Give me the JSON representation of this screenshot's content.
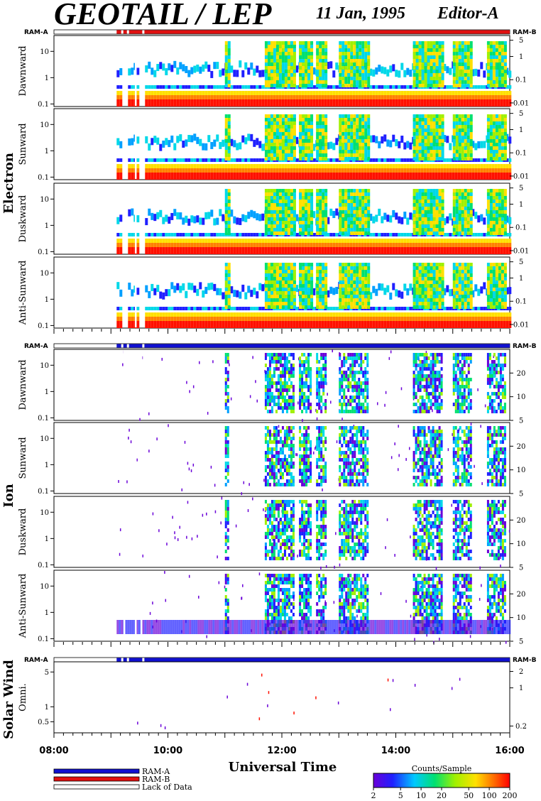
{
  "header": {
    "title": "GEOTAIL / LEP",
    "date": "11 Jan, 1995",
    "editor": "Editor-A"
  },
  "ram": {
    "left": "RAM-A",
    "right": "RAM-B"
  },
  "colors": {
    "ram_a": "#1010d0",
    "ram_b": "#e01010",
    "lack": "#ffffff"
  },
  "chart_data": {
    "type": "heatmap",
    "xlabel": "Universal Time",
    "x_ticks": [
      "08:00",
      "10:00",
      "12:00",
      "14:00",
      "16:00"
    ],
    "x_range_hours": [
      8,
      16
    ],
    "groups": [
      {
        "name": "Electron",
        "mode_bar": "RAM-B",
        "left_ticks": [
          "10",
          "1",
          "0.1"
        ],
        "left_tick_values": [
          10,
          1,
          0.1
        ],
        "left_range": [
          0.08,
          40
        ],
        "right_ticks": [
          "5",
          "1",
          "0.1",
          "0.01"
        ],
        "right_tick_values": [
          5,
          1,
          0.1,
          0.01
        ],
        "right_range": [
          0.007,
          8
        ],
        "panels": [
          {
            "label": "Dawnward"
          },
          {
            "label": "Sunward"
          },
          {
            "label": "Duskward"
          },
          {
            "label": "Anti-Sunward"
          }
        ]
      },
      {
        "name": "Ion",
        "mode_bar": "RAM-A",
        "left_ticks": [
          "10",
          "1",
          "0.1"
        ],
        "left_tick_values": [
          10,
          1,
          0.1
        ],
        "left_range": [
          0.08,
          40
        ],
        "right_ticks": [
          "20",
          "10",
          "5"
        ],
        "right_tick_values": [
          20,
          10,
          5
        ],
        "right_range": [
          5,
          40
        ],
        "panels": [
          {
            "label": "Dawnward"
          },
          {
            "label": "Sunward"
          },
          {
            "label": "Duskward"
          },
          {
            "label": "Anti-Sunward"
          }
        ]
      },
      {
        "name": "Solar Wind",
        "mode_bar": "RAM-A",
        "left_ticks": [
          "5",
          "1",
          "0.5"
        ],
        "left_tick_values": [
          5,
          1,
          0.5
        ],
        "left_range": [
          0.3,
          8
        ],
        "right_ticks": [
          "2",
          "1",
          "0.2"
        ],
        "right_tick_values": [
          2,
          1,
          0.2
        ],
        "right_range": [
          0.15,
          3
        ],
        "panels": [
          {
            "label": "Omni."
          }
        ]
      }
    ],
    "colorbar": {
      "title": "Counts/Sample",
      "ticks": [
        "2",
        "5",
        "10",
        "20",
        "50",
        "100",
        "200"
      ],
      "tick_values": [
        2,
        5,
        10,
        20,
        50,
        100,
        200
      ],
      "range": [
        2,
        200
      ],
      "scale": "log"
    },
    "data_gap_hours": [
      9.1,
      9.6
    ]
  },
  "legend": {
    "items": [
      {
        "label": "RAM-A",
        "color": "#1010d0"
      },
      {
        "label": "RAM-B",
        "color": "#e01010"
      },
      {
        "label": "Lack of Data",
        "color": "#ffffff"
      }
    ]
  }
}
